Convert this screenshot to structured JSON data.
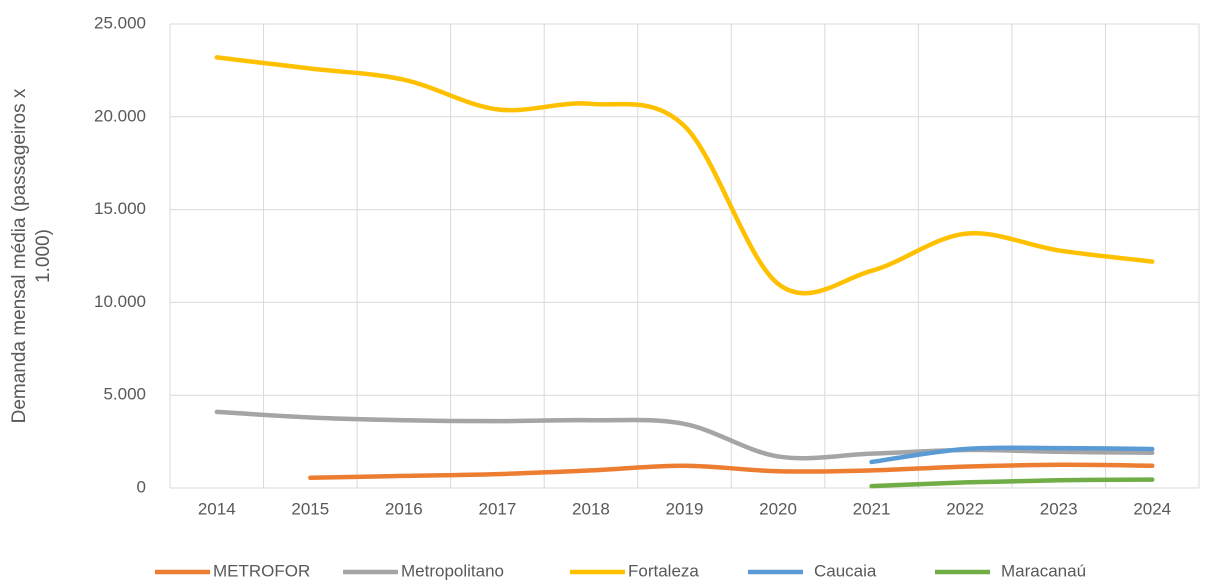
{
  "chart_data": {
    "type": "line",
    "y_label": "Demanda mensal média (passageiros x 1.000)",
    "categories": [
      "2014",
      "2015",
      "2016",
      "2017",
      "2018",
      "2019",
      "2020",
      "2021",
      "2022",
      "2023",
      "2024"
    ],
    "series": [
      {
        "name": "METROFOR",
        "color": "#ED7D31",
        "values": [
          null,
          550,
          650,
          750,
          950,
          1200,
          900,
          950,
          1150,
          1250,
          1200
        ]
      },
      {
        "name": "Metropolitano",
        "color": "#A5A5A5",
        "values": [
          4100,
          3800,
          3650,
          3600,
          3650,
          3450,
          1700,
          1850,
          2050,
          1950,
          1900
        ]
      },
      {
        "name": "Fortaleza",
        "color": "#FFC000",
        "values": [
          23200,
          22600,
          22000,
          20400,
          20700,
          19500,
          11000,
          11700,
          13700,
          12800,
          12200
        ]
      },
      {
        "name": "Caucaia",
        "color": "#5B9BD5",
        "values": [
          null,
          null,
          null,
          null,
          null,
          null,
          null,
          1400,
          2100,
          2150,
          2100
        ]
      },
      {
        "name": "Maracanaú",
        "color": "#70AD47",
        "values": [
          null,
          null,
          null,
          null,
          null,
          null,
          null,
          100,
          300,
          420,
          450
        ]
      }
    ],
    "ylim": [
      0,
      25000
    ],
    "yticks": [
      0,
      {
        "value": 5000,
        "label": "5.000"
      },
      {
        "value": 10000,
        "label": "10.000"
      },
      {
        "value": 15000,
        "label": "15.000"
      },
      {
        "value": 20000,
        "label": "20.000"
      },
      {
        "value": 25000,
        "label": "25.000"
      }
    ],
    "grid": true,
    "legend": "bottom"
  }
}
